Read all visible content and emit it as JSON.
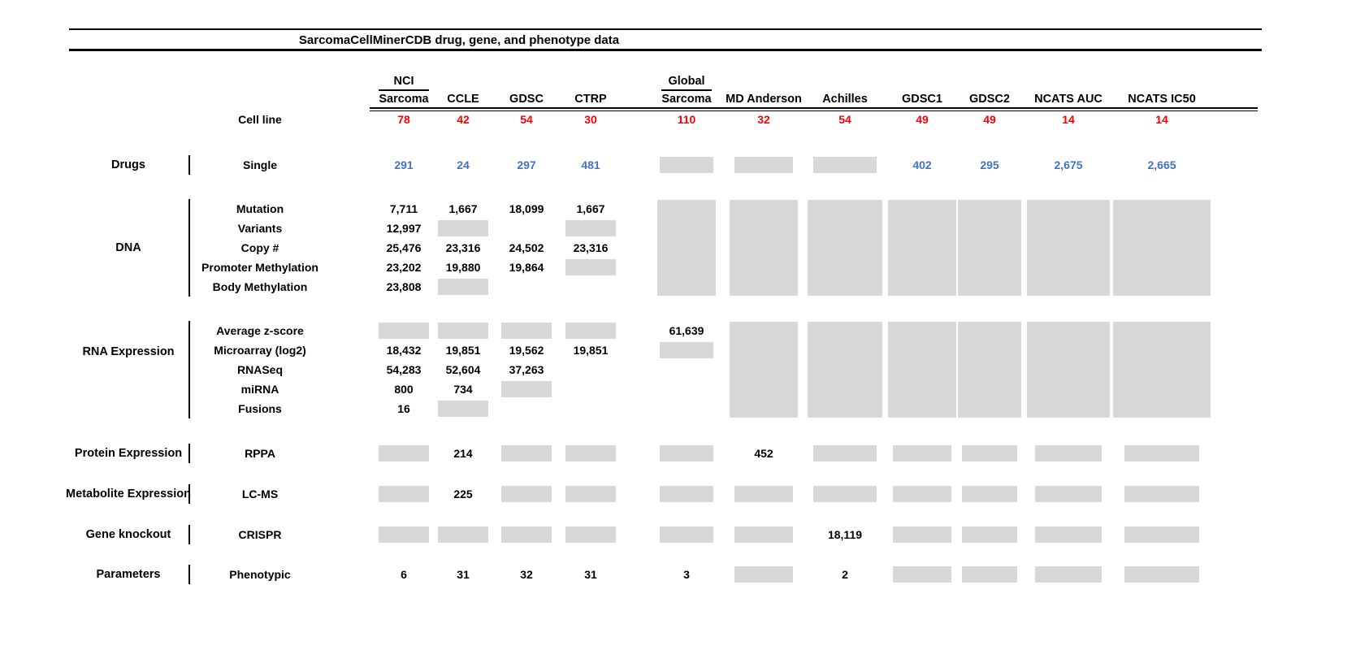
{
  "chart_data": {
    "type": "table",
    "title": "SarcomaCellMinerCDB drug, gene, and phenotype data",
    "cell_line_row_label": "Cell line",
    "columns": [
      {
        "top": "NCI",
        "label": "Sarcoma",
        "cell_lines": "78"
      },
      {
        "top": "",
        "label": "CCLE",
        "cell_lines": "42"
      },
      {
        "top": "",
        "label": "GDSC",
        "cell_lines": "54"
      },
      {
        "top": "",
        "label": "CTRP",
        "cell_lines": "30"
      },
      {
        "top": "Global",
        "label": "Sarcoma",
        "cell_lines": "110"
      },
      {
        "top": "",
        "label": "MD Anderson",
        "cell_lines": "32"
      },
      {
        "top": "",
        "label": "Achilles",
        "cell_lines": "54"
      },
      {
        "top": "",
        "label": "GDSC1",
        "cell_lines": "49"
      },
      {
        "top": "",
        "label": "GDSC2",
        "cell_lines": "49"
      },
      {
        "top": "",
        "label": "NCATS AUC",
        "cell_lines": "14"
      },
      {
        "top": "",
        "label": "NCATS IC50",
        "cell_lines": "14"
      }
    ],
    "groups": [
      {
        "category": "Drugs",
        "value_style": "drug",
        "rows": [
          {
            "label": "Single",
            "cells": [
              "291",
              "24",
              "297",
              "481",
              "box",
              "box",
              "box",
              "402",
              "295",
              "2,675",
              "2,665"
            ]
          }
        ],
        "full_height_boxes": []
      },
      {
        "category": "DNA",
        "value_style": "default",
        "rows": [
          {
            "label": "Mutation",
            "cells": [
              "7,711",
              "1,667",
              "18,099",
              "1,667",
              "",
              "",
              "",
              "",
              "",
              "",
              ""
            ]
          },
          {
            "label": "Variants",
            "cells": [
              "12,997",
              "box",
              "",
              "box",
              "",
              "",
              "",
              "",
              "",
              "",
              ""
            ]
          },
          {
            "label": "Copy #",
            "cells": [
              "25,476",
              "23,316",
              "24,502",
              "23,316",
              "",
              "",
              "",
              "",
              "",
              "",
              ""
            ]
          },
          {
            "label": "Promoter Methylation",
            "cells": [
              "23,202",
              "19,880",
              "19,864",
              "box",
              "",
              "",
              "",
              "",
              "",
              "",
              ""
            ]
          },
          {
            "label": "Body Methylation",
            "cells": [
              "23,808",
              "box",
              "",
              "",
              "",
              "",
              "",
              "",
              "",
              "",
              ""
            ]
          }
        ],
        "full_height_boxes": [
          4,
          5,
          6,
          7,
          8,
          9,
          10
        ]
      },
      {
        "category": "RNA Expression",
        "value_style": "default",
        "rows": [
          {
            "label": "Average z-score",
            "cells": [
              "box",
              "box",
              "box",
              "box",
              "61,639",
              "",
              "",
              "",
              "",
              "",
              ""
            ]
          },
          {
            "label": "Microarray (log2)",
            "cells": [
              "18,432",
              "19,851",
              "19,562",
              "19,851",
              "box",
              "",
              "",
              "",
              "",
              "",
              ""
            ]
          },
          {
            "label": "RNASeq",
            "cells": [
              "54,283",
              "52,604",
              "37,263",
              "",
              "",
              "",
              "",
              "",
              "",
              "",
              ""
            ]
          },
          {
            "label": "miRNA",
            "cells": [
              "800",
              "734",
              "box",
              "",
              "",
              "",
              "",
              "",
              "",
              "",
              ""
            ]
          },
          {
            "label": "Fusions",
            "cells": [
              "16",
              "box",
              "",
              "",
              "",
              "",
              "",
              "",
              "",
              "",
              ""
            ]
          }
        ],
        "full_height_boxes": [
          5,
          6,
          7,
          8,
          9,
          10
        ]
      },
      {
        "category": "Protein Expression",
        "value_style": "default",
        "rows": [
          {
            "label": "RPPA",
            "cells": [
              "box",
              "214",
              "box",
              "box",
              "box",
              "452",
              "box",
              "box",
              "box",
              "box",
              "box"
            ]
          }
        ],
        "full_height_boxes": []
      },
      {
        "category": "Metabolite Expression",
        "value_style": "default",
        "rows": [
          {
            "label": "LC-MS",
            "cells": [
              "box",
              "225",
              "box",
              "box",
              "box",
              "box",
              "box",
              "box",
              "box",
              "box",
              "box"
            ]
          }
        ],
        "full_height_boxes": []
      },
      {
        "category": "Gene knockout",
        "value_style": "default",
        "rows": [
          {
            "label": "CRISPR",
            "cells": [
              "box",
              "box",
              "box",
              "box",
              "box",
              "box",
              "18,119",
              "box",
              "box",
              "box",
              "box"
            ]
          }
        ],
        "full_height_boxes": []
      },
      {
        "category": "Parameters",
        "value_style": "default",
        "rows": [
          {
            "label": "Phenotypic",
            "cells": [
              "6",
              "31",
              "32",
              "31",
              "3",
              "box",
              "2",
              "box",
              "box",
              "box",
              "box"
            ]
          }
        ],
        "full_height_boxes": []
      }
    ]
  },
  "colors": {
    "cell_line_count": "#ff0000",
    "drug_count": "#4472c4",
    "unavailable_box": "#d8d8d8"
  }
}
